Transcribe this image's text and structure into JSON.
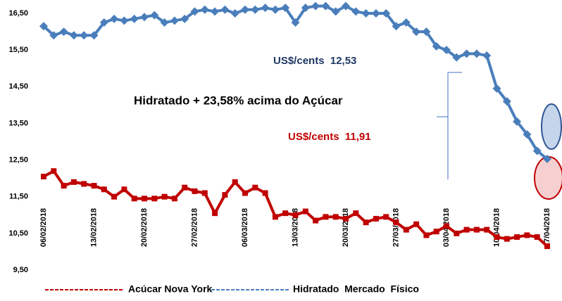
{
  "chart_data": {
    "type": "line",
    "categories": [
      "06/02/2018",
      null,
      null,
      null,
      null,
      "13/02/2018",
      null,
      null,
      null,
      null,
      "20/02/2018",
      null,
      null,
      null,
      null,
      "27/02/2018",
      null,
      null,
      null,
      null,
      "06/03/2018",
      null,
      null,
      null,
      null,
      "13/03/2018",
      null,
      null,
      null,
      null,
      "20/03/2018",
      null,
      null,
      null,
      null,
      "27/03/2018",
      null,
      null,
      null,
      null,
      "03/04/2018",
      null,
      null,
      null,
      null,
      "10/04/2018",
      null,
      null,
      null,
      null,
      "17/04/2018"
    ],
    "series": [
      {
        "name": "Acúcar Nova York",
        "color": "#c00000",
        "marker": "square",
        "values": [
          12.05,
          12.2,
          11.8,
          11.9,
          11.85,
          11.8,
          11.7,
          11.5,
          11.7,
          11.45,
          11.45,
          11.45,
          11.5,
          11.45,
          11.75,
          11.65,
          11.6,
          11.05,
          11.55,
          11.9,
          11.6,
          11.75,
          11.6,
          10.95,
          11.05,
          11.0,
          11.1,
          10.85,
          10.95,
          10.95,
          10.9,
          11.05,
          10.8,
          10.9,
          10.95,
          10.8,
          10.6,
          10.75,
          10.45,
          10.55,
          10.7,
          10.5,
          10.6,
          10.6,
          10.6,
          10.4,
          10.35,
          10.4,
          10.45,
          10.4,
          10.15
        ]
      },
      {
        "name": "Hidratado  Mercado  Físico",
        "color": "#4a7ebb",
        "marker": "diamond",
        "values": [
          16.15,
          15.9,
          16.0,
          15.9,
          15.9,
          15.9,
          16.25,
          16.35,
          16.3,
          16.35,
          16.4,
          16.45,
          16.25,
          16.3,
          16.35,
          16.55,
          16.6,
          16.55,
          16.6,
          16.5,
          16.6,
          16.6,
          16.65,
          16.6,
          16.65,
          16.25,
          16.65,
          16.7,
          16.7,
          16.55,
          16.7,
          16.55,
          16.5,
          16.5,
          16.5,
          16.15,
          16.25,
          16.0,
          16.0,
          15.6,
          15.5,
          15.3,
          15.4,
          15.4,
          15.35,
          14.45,
          14.1,
          13.55,
          13.2,
          12.75,
          12.53
        ]
      }
    ],
    "ylim": [
      9.5,
      16.5
    ],
    "yticks": [
      {
        "value": 9.5,
        "label": "9,50"
      },
      {
        "value": 10.5,
        "label": "10,50"
      },
      {
        "value": 11.5,
        "label": "11,50"
      },
      {
        "value": 12.5,
        "label": "12,50"
      },
      {
        "value": 13.5,
        "label": "13,50"
      },
      {
        "value": 14.5,
        "label": "14,50"
      },
      {
        "value": 15.5,
        "label": "15,50"
      },
      {
        "value": 16.5,
        "label": "16,50"
      }
    ],
    "annotations": [
      "US$/cents  12,53",
      "Hidratado + 23,58% acima do Açúcar",
      "US$/cents  11,91"
    ],
    "grid": false
  }
}
